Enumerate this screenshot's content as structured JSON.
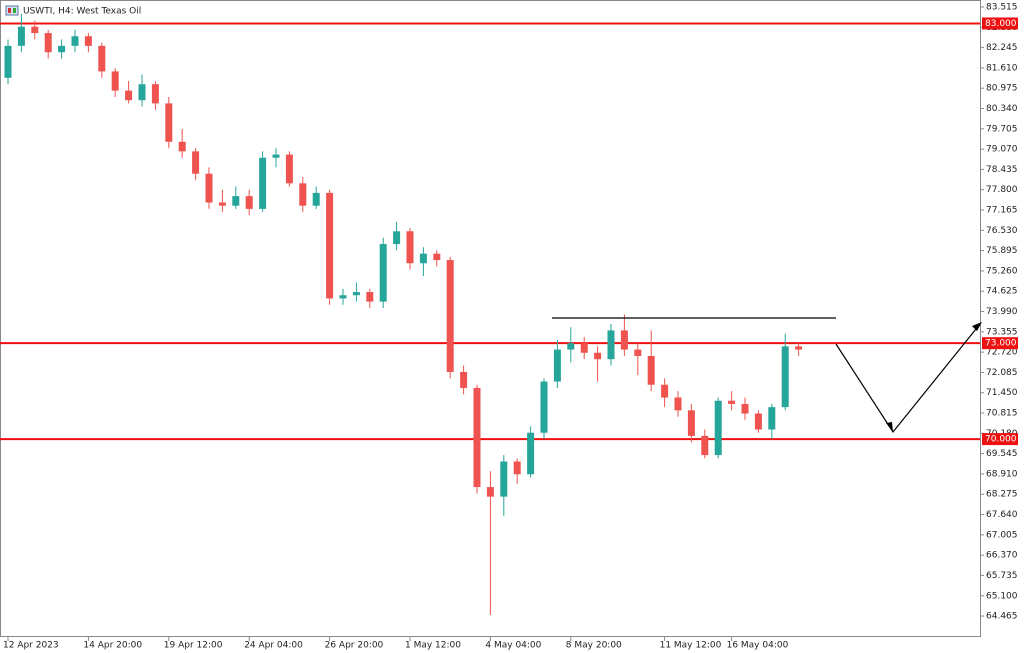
{
  "chart_data": {
    "type": "candlestick",
    "title": "USWTI, H4:  West Texas Oil",
    "categories": [
      "12 Apr 2023",
      null,
      null,
      null,
      null,
      null,
      "14 Apr 20:00",
      null,
      null,
      null,
      null,
      null,
      "19 Apr 12:00",
      null,
      null,
      null,
      null,
      null,
      "24 Apr 04:00",
      null,
      null,
      null,
      null,
      null,
      "26 Apr 20:00",
      null,
      null,
      null,
      null,
      null,
      "1 May 12:00",
      null,
      null,
      null,
      null,
      null,
      "4 May 04:00",
      null,
      null,
      null,
      null,
      null,
      "8 May 20:00",
      null,
      null,
      null,
      null,
      null,
      null,
      "11 May 12:00",
      null,
      null,
      null,
      null,
      "16 May 04:00",
      null,
      null,
      null,
      null,
      null
    ],
    "open": [
      81.3,
      82.3,
      82.9,
      82.7,
      82.1,
      82.3,
      82.6,
      82.3,
      81.5,
      80.9,
      80.6,
      81.1,
      80.5,
      79.3,
      79.0,
      78.3,
      77.4,
      77.3,
      77.6,
      77.2,
      78.8,
      78.9,
      78.0,
      77.3,
      77.7,
      74.4,
      74.5,
      74.6,
      74.3,
      76.1,
      76.5,
      75.5,
      75.8,
      75.6,
      72.1,
      71.6,
      68.5,
      68.2,
      69.3,
      68.9,
      70.2,
      71.8,
      72.8,
      73.0,
      72.7,
      72.5,
      73.4,
      72.8,
      72.6,
      71.7,
      71.3,
      70.9,
      70.1,
      69.5,
      71.2,
      71.1,
      70.8,
      70.3,
      71.0,
      72.9
    ],
    "high": [
      82.5,
      83.3,
      83.1,
      82.8,
      82.5,
      82.8,
      82.7,
      82.4,
      81.6,
      81.2,
      81.4,
      81.2,
      80.7,
      79.7,
      79.1,
      78.5,
      77.8,
      77.9,
      77.8,
      79.0,
      79.1,
      79.0,
      78.2,
      77.9,
      77.8,
      74.7,
      74.9,
      74.7,
      76.3,
      76.8,
      76.6,
      76.0,
      75.9,
      75.7,
      72.3,
      71.7,
      69.0,
      69.5,
      69.4,
      70.4,
      71.9,
      73.1,
      73.5,
      73.2,
      72.9,
      73.6,
      73.9,
      73.0,
      73.4,
      71.9,
      71.5,
      71.1,
      70.3,
      71.3,
      71.5,
      71.3,
      70.9,
      71.1,
      73.3,
      73.0
    ],
    "low": [
      81.1,
      82.1,
      82.5,
      81.9,
      81.9,
      82.1,
      82.1,
      81.3,
      80.7,
      80.5,
      80.4,
      80.3,
      79.1,
      78.8,
      78.1,
      77.2,
      77.1,
      77.2,
      77.0,
      77.1,
      78.5,
      77.9,
      77.1,
      77.2,
      74.2,
      74.2,
      74.3,
      74.1,
      74.1,
      75.9,
      75.3,
      75.1,
      75.4,
      71.9,
      71.4,
      68.3,
      64.5,
      67.6,
      68.6,
      68.8,
      70.0,
      71.6,
      72.4,
      72.5,
      71.8,
      72.3,
      72.6,
      72.0,
      71.5,
      71.0,
      70.7,
      69.9,
      69.4,
      69.4,
      70.9,
      70.6,
      70.2,
      70.0,
      70.9,
      72.6
    ],
    "close": [
      82.3,
      82.9,
      82.7,
      82.1,
      82.3,
      82.6,
      82.3,
      81.5,
      80.9,
      80.6,
      81.1,
      80.5,
      79.3,
      79.0,
      78.3,
      77.4,
      77.3,
      77.6,
      77.2,
      78.8,
      78.9,
      78.0,
      77.3,
      77.7,
      74.4,
      74.5,
      74.6,
      74.3,
      76.1,
      76.5,
      75.5,
      75.8,
      75.6,
      72.1,
      71.6,
      68.5,
      68.2,
      69.3,
      68.9,
      70.2,
      71.8,
      72.8,
      73.0,
      72.7,
      72.5,
      73.4,
      72.8,
      72.6,
      71.7,
      71.3,
      70.9,
      70.1,
      69.5,
      71.2,
      71.1,
      70.8,
      70.3,
      71.0,
      72.9,
      72.8
    ],
    "up_color": "#26a69a",
    "down_color": "#ef5350",
    "ylim": [
      63.81,
      83.734
    ],
    "yticks": [
      83.515,
      {
        "value": 82.88,
        "label": "82.880"
      },
      82.245,
      {
        "value": 81.61,
        "label": "81.610"
      },
      80.975,
      {
        "value": 80.34,
        "label": "80.340"
      },
      79.705,
      {
        "value": 79.07,
        "label": "79.070"
      },
      78.435,
      {
        "value": 77.8,
        "label": "77.800"
      },
      77.165,
      {
        "value": 76.53,
        "label": "76.530"
      },
      75.895,
      {
        "value": 75.26,
        "label": "75.260"
      },
      74.625,
      {
        "value": 73.99,
        "label": "73.990"
      },
      73.355,
      {
        "value": 72.72,
        "label": "72.720"
      },
      72.085,
      {
        "value": 71.45,
        "label": "71.450"
      },
      70.815,
      {
        "value": 70.18,
        "label": "70.180"
      },
      69.545,
      {
        "value": 68.91,
        "label": "68.910"
      },
      68.275,
      {
        "value": 67.64,
        "label": "67.640"
      },
      67.005,
      {
        "value": 66.37,
        "label": "66.370"
      },
      65.735,
      {
        "value": 65.1,
        "label": "65.100"
      },
      64.465
    ],
    "levels": [
      {
        "value": 83,
        "label": "83.000"
      },
      {
        "value": 73,
        "label": "73.000"
      },
      {
        "value": 70,
        "label": "70.000"
      }
    ],
    "level_color": "#ee1111",
    "grid": false
  }
}
